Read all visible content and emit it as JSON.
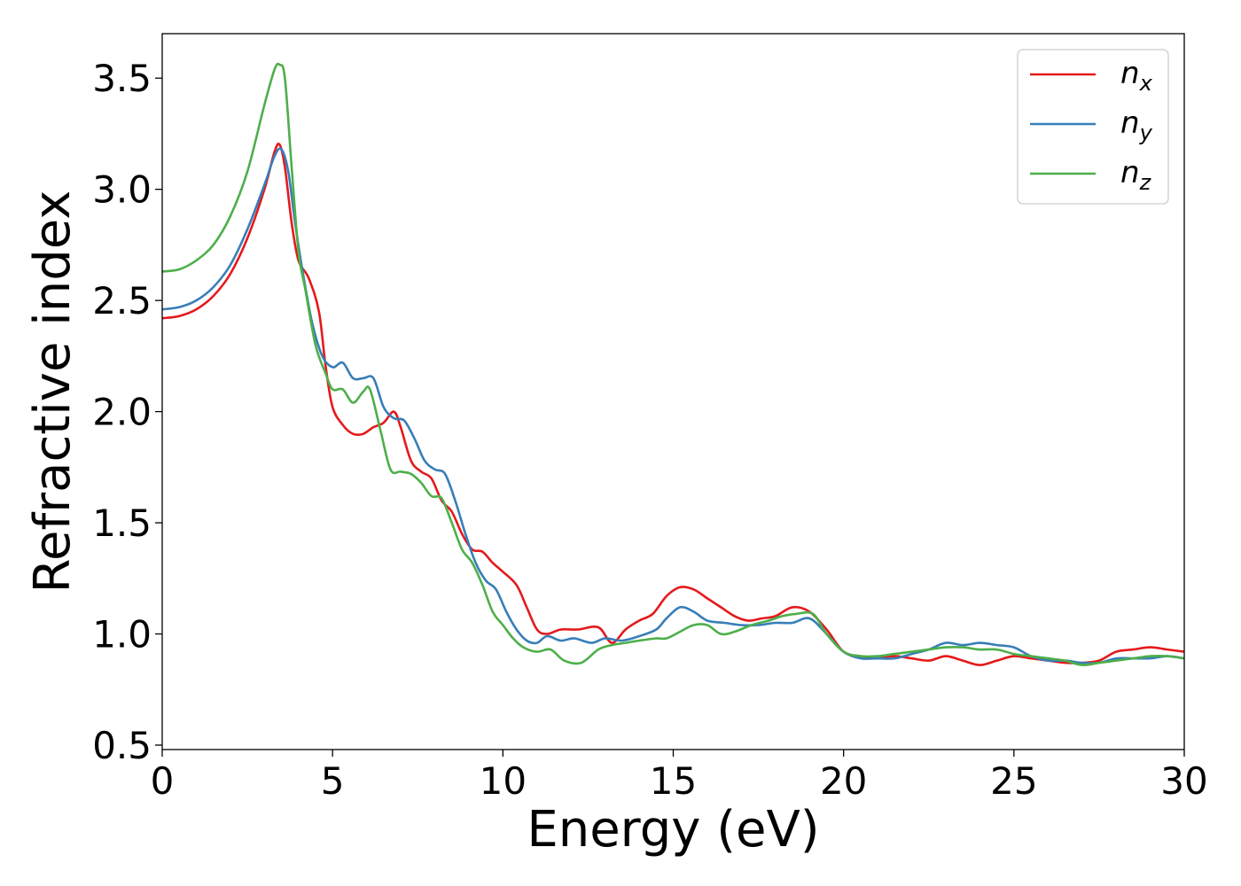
{
  "chart_data": {
    "type": "line",
    "title": "",
    "xlabel": "Energy (eV)",
    "ylabel": "Refractive index",
    "xlim": [
      0,
      30
    ],
    "ylim": [
      0.48,
      3.7
    ],
    "xticks": [
      0,
      5,
      10,
      15,
      20,
      25,
      30
    ],
    "xtick_labels": [
      "0",
      "5",
      "10",
      "15",
      "20",
      "25",
      "30"
    ],
    "yticks": [
      0.5,
      1.0,
      1.5,
      2.0,
      2.5,
      3.0,
      3.5
    ],
    "ytick_labels": [
      "0.5",
      "1.0",
      "1.5",
      "2.0",
      "2.5",
      "3.0",
      "3.5"
    ],
    "grid": false,
    "legend_position": "top-right",
    "series": [
      {
        "name": "n",
        "subscript": "x",
        "color": "#e41a1c",
        "points": [
          [
            0,
            2.42
          ],
          [
            0.5,
            2.43
          ],
          [
            1,
            2.46
          ],
          [
            1.5,
            2.52
          ],
          [
            2,
            2.62
          ],
          [
            2.5,
            2.78
          ],
          [
            3,
            3.0
          ],
          [
            3.3,
            3.17
          ],
          [
            3.45,
            3.2
          ],
          [
            3.6,
            3.1
          ],
          [
            3.8,
            2.85
          ],
          [
            4,
            2.68
          ],
          [
            4.3,
            2.6
          ],
          [
            4.6,
            2.45
          ],
          [
            4.8,
            2.2
          ],
          [
            5,
            2.02
          ],
          [
            5.3,
            1.94
          ],
          [
            5.6,
            1.9
          ],
          [
            5.9,
            1.9
          ],
          [
            6.2,
            1.93
          ],
          [
            6.5,
            1.95
          ],
          [
            6.8,
            2.0
          ],
          [
            7,
            1.93
          ],
          [
            7.3,
            1.78
          ],
          [
            7.6,
            1.73
          ],
          [
            7.9,
            1.7
          ],
          [
            8.2,
            1.6
          ],
          [
            8.5,
            1.55
          ],
          [
            8.8,
            1.45
          ],
          [
            9.1,
            1.38
          ],
          [
            9.4,
            1.37
          ],
          [
            9.7,
            1.32
          ],
          [
            10,
            1.28
          ],
          [
            10.4,
            1.22
          ],
          [
            10.7,
            1.12
          ],
          [
            11,
            1.02
          ],
          [
            11.3,
            1.0
          ],
          [
            11.7,
            1.02
          ],
          [
            12.2,
            1.02
          ],
          [
            12.8,
            1.03
          ],
          [
            13.2,
            0.96
          ],
          [
            13.6,
            1.02
          ],
          [
            14,
            1.06
          ],
          [
            14.4,
            1.09
          ],
          [
            14.8,
            1.17
          ],
          [
            15.2,
            1.21
          ],
          [
            15.6,
            1.2
          ],
          [
            16,
            1.16
          ],
          [
            16.4,
            1.12
          ],
          [
            16.8,
            1.08
          ],
          [
            17.2,
            1.06
          ],
          [
            17.6,
            1.07
          ],
          [
            18,
            1.08
          ],
          [
            18.5,
            1.12
          ],
          [
            19,
            1.1
          ],
          [
            19.5,
            1.02
          ],
          [
            20,
            0.92
          ],
          [
            20.5,
            0.9
          ],
          [
            21,
            0.89
          ],
          [
            21.5,
            0.9
          ],
          [
            22,
            0.89
          ],
          [
            22.5,
            0.88
          ],
          [
            23,
            0.9
          ],
          [
            23.5,
            0.88
          ],
          [
            24,
            0.86
          ],
          [
            24.5,
            0.88
          ],
          [
            25,
            0.9
          ],
          [
            25.5,
            0.89
          ],
          [
            26,
            0.88
          ],
          [
            26.5,
            0.87
          ],
          [
            27,
            0.87
          ],
          [
            27.5,
            0.88
          ],
          [
            28,
            0.92
          ],
          [
            28.5,
            0.93
          ],
          [
            29,
            0.94
          ],
          [
            29.5,
            0.93
          ],
          [
            30,
            0.92
          ]
        ]
      },
      {
        "name": "n",
        "subscript": "y",
        "color": "#377eb8",
        "points": [
          [
            0,
            2.46
          ],
          [
            0.5,
            2.47
          ],
          [
            1,
            2.5
          ],
          [
            1.5,
            2.56
          ],
          [
            2,
            2.66
          ],
          [
            2.5,
            2.82
          ],
          [
            3,
            3.02
          ],
          [
            3.3,
            3.15
          ],
          [
            3.5,
            3.18
          ],
          [
            3.7,
            3.08
          ],
          [
            3.9,
            2.85
          ],
          [
            4.1,
            2.65
          ],
          [
            4.4,
            2.4
          ],
          [
            4.7,
            2.25
          ],
          [
            5,
            2.2
          ],
          [
            5.3,
            2.22
          ],
          [
            5.6,
            2.15
          ],
          [
            5.9,
            2.15
          ],
          [
            6.2,
            2.15
          ],
          [
            6.5,
            2.02
          ],
          [
            6.8,
            1.97
          ],
          [
            7.1,
            1.96
          ],
          [
            7.4,
            1.88
          ],
          [
            7.7,
            1.78
          ],
          [
            8,
            1.74
          ],
          [
            8.3,
            1.72
          ],
          [
            8.6,
            1.6
          ],
          [
            8.9,
            1.45
          ],
          [
            9.2,
            1.32
          ],
          [
            9.5,
            1.24
          ],
          [
            9.8,
            1.2
          ],
          [
            10.1,
            1.1
          ],
          [
            10.4,
            1.02
          ],
          [
            10.7,
            0.97
          ],
          [
            11,
            0.96
          ],
          [
            11.3,
            0.99
          ],
          [
            11.7,
            0.97
          ],
          [
            12.1,
            0.98
          ],
          [
            12.6,
            0.96
          ],
          [
            13,
            0.98
          ],
          [
            13.5,
            0.97
          ],
          [
            14,
            0.99
          ],
          [
            14.5,
            1.02
          ],
          [
            14.8,
            1.07
          ],
          [
            15.2,
            1.12
          ],
          [
            15.6,
            1.1
          ],
          [
            16,
            1.06
          ],
          [
            16.5,
            1.05
          ],
          [
            17,
            1.04
          ],
          [
            17.5,
            1.04
          ],
          [
            18,
            1.05
          ],
          [
            18.5,
            1.05
          ],
          [
            19,
            1.07
          ],
          [
            19.5,
            1.0
          ],
          [
            20,
            0.92
          ],
          [
            20.5,
            0.89
          ],
          [
            21,
            0.89
          ],
          [
            21.5,
            0.89
          ],
          [
            22,
            0.91
          ],
          [
            22.5,
            0.93
          ],
          [
            23,
            0.96
          ],
          [
            23.5,
            0.95
          ],
          [
            24,
            0.96
          ],
          [
            24.5,
            0.95
          ],
          [
            25,
            0.94
          ],
          [
            25.5,
            0.9
          ],
          [
            26,
            0.88
          ],
          [
            26.5,
            0.88
          ],
          [
            27,
            0.87
          ],
          [
            27.5,
            0.87
          ],
          [
            28,
            0.89
          ],
          [
            28.5,
            0.89
          ],
          [
            29,
            0.89
          ],
          [
            29.5,
            0.9
          ],
          [
            30,
            0.89
          ]
        ]
      },
      {
        "name": "n",
        "subscript": "z",
        "color": "#4daf4a",
        "points": [
          [
            0,
            2.63
          ],
          [
            0.5,
            2.64
          ],
          [
            1,
            2.68
          ],
          [
            1.5,
            2.75
          ],
          [
            2,
            2.88
          ],
          [
            2.5,
            3.08
          ],
          [
            3,
            3.38
          ],
          [
            3.3,
            3.54
          ],
          [
            3.45,
            3.56
          ],
          [
            3.6,
            3.5
          ],
          [
            3.8,
            3.1
          ],
          [
            4,
            2.72
          ],
          [
            4.2,
            2.55
          ],
          [
            4.5,
            2.3
          ],
          [
            4.8,
            2.17
          ],
          [
            5,
            2.1
          ],
          [
            5.3,
            2.1
          ],
          [
            5.6,
            2.04
          ],
          [
            5.9,
            2.09
          ],
          [
            6.1,
            2.1
          ],
          [
            6.4,
            1.92
          ],
          [
            6.7,
            1.74
          ],
          [
            7,
            1.73
          ],
          [
            7.3,
            1.72
          ],
          [
            7.6,
            1.68
          ],
          [
            7.9,
            1.62
          ],
          [
            8.2,
            1.61
          ],
          [
            8.5,
            1.5
          ],
          [
            8.8,
            1.38
          ],
          [
            9.1,
            1.32
          ],
          [
            9.4,
            1.22
          ],
          [
            9.7,
            1.1
          ],
          [
            10,
            1.04
          ],
          [
            10.3,
            0.98
          ],
          [
            10.6,
            0.94
          ],
          [
            11,
            0.92
          ],
          [
            11.4,
            0.93
          ],
          [
            11.8,
            0.88
          ],
          [
            12.3,
            0.87
          ],
          [
            12.8,
            0.93
          ],
          [
            13.2,
            0.95
          ],
          [
            13.6,
            0.96
          ],
          [
            14,
            0.97
          ],
          [
            14.5,
            0.98
          ],
          [
            14.8,
            0.98
          ],
          [
            15.2,
            1.01
          ],
          [
            15.6,
            1.04
          ],
          [
            16,
            1.04
          ],
          [
            16.4,
            1.0
          ],
          [
            16.8,
            1.01
          ],
          [
            17.3,
            1.04
          ],
          [
            17.8,
            1.06
          ],
          [
            18.2,
            1.08
          ],
          [
            18.6,
            1.09
          ],
          [
            19.1,
            1.09
          ],
          [
            19.5,
            1.0
          ],
          [
            20,
            0.92
          ],
          [
            20.5,
            0.9
          ],
          [
            21,
            0.9
          ],
          [
            21.5,
            0.91
          ],
          [
            22,
            0.92
          ],
          [
            22.5,
            0.93
          ],
          [
            23,
            0.94
          ],
          [
            23.5,
            0.94
          ],
          [
            24,
            0.93
          ],
          [
            24.5,
            0.93
          ],
          [
            25,
            0.91
          ],
          [
            25.5,
            0.9
          ],
          [
            26,
            0.89
          ],
          [
            26.5,
            0.88
          ],
          [
            27,
            0.86
          ],
          [
            27.5,
            0.87
          ],
          [
            28,
            0.88
          ],
          [
            28.5,
            0.89
          ],
          [
            29,
            0.9
          ],
          [
            29.5,
            0.9
          ],
          [
            30,
            0.89
          ]
        ]
      }
    ]
  }
}
